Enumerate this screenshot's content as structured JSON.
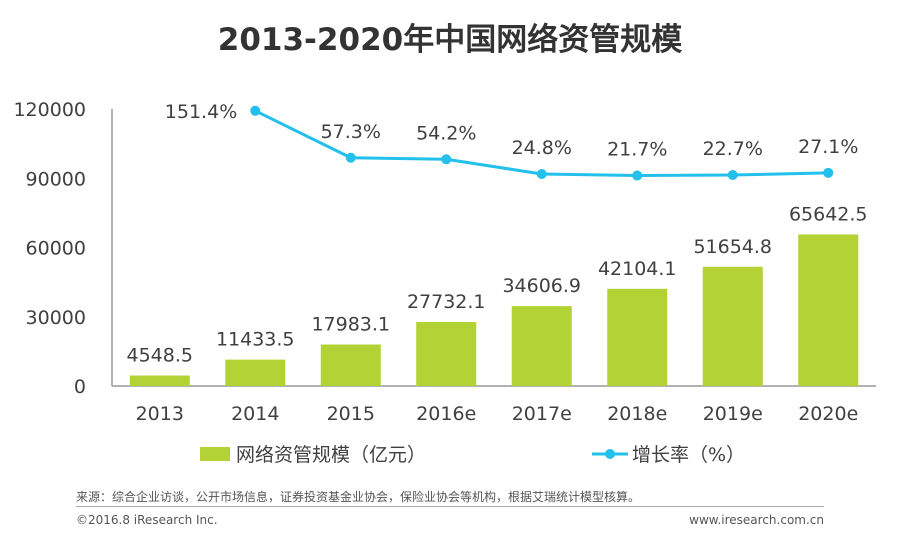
{
  "colors": {
    "bar": "#b2d235",
    "line": "#22c0ea",
    "axis": "#999999",
    "text": "#404040"
  },
  "chart_data": {
    "type": "bar+line",
    "title": "2013-2020年中国网络资管规模",
    "categories": [
      "2013",
      "2014",
      "2015",
      "2016e",
      "2017e",
      "2018e",
      "2019e",
      "2020e"
    ],
    "ylim": [
      0,
      120000
    ],
    "yticks": [
      "0",
      "30000",
      "60000",
      "90000",
      "120000"
    ],
    "y2lim": [
      -400,
      155
    ],
    "grid": false,
    "legend_position": "bottom",
    "series": [
      {
        "name": "网络资管规模（亿元）",
        "type": "bar",
        "values": [
          4548.5,
          11433.5,
          17983.1,
          27732.1,
          34606.9,
          42104.1,
          51654.8,
          65642.5
        ],
        "labels": [
          "4548.5",
          "11433.5",
          "17983.1",
          "27732.1",
          "34606.9",
          "42104.1",
          "51654.8",
          "65642.5"
        ]
      },
      {
        "name": "增长率（%）",
        "type": "line",
        "axis": "secondary",
        "values": [
          null,
          151.4,
          57.3,
          54.2,
          24.8,
          21.7,
          22.7,
          27.1
        ],
        "labels": [
          "",
          "151.4%",
          "57.3%",
          "54.2%",
          "24.8%",
          "21.7%",
          "22.7%",
          "27.1%"
        ]
      }
    ]
  },
  "footer": {
    "source": "来源：综合企业访谈，公开市场信息，证券投资基金业协会，保险业协会等机构，根据艾瑞统计模型核算。",
    "copyright": "©2016.8 iResearch Inc.",
    "url": "www.iresearch.com.cn"
  }
}
